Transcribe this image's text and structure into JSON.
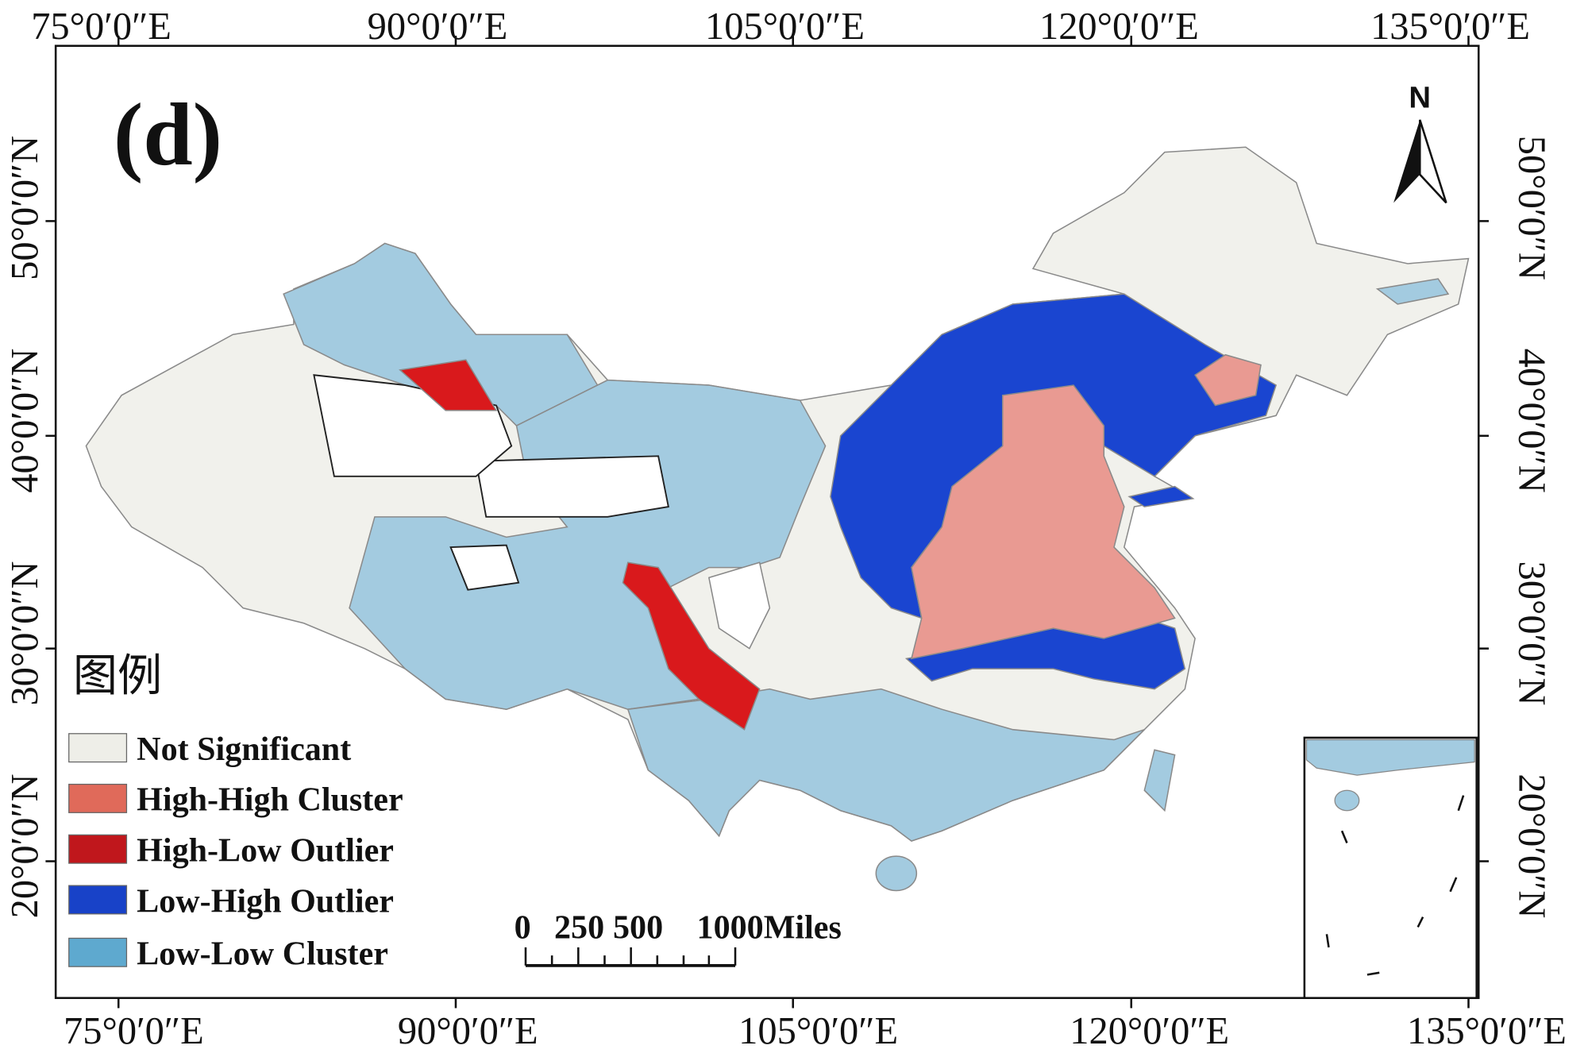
{
  "panel_label": "(d)",
  "north_label": "N",
  "axes": {
    "top": [
      "75°0′0″E",
      "90°0′0″E",
      "105°0′0″E",
      "120°0′0″E",
      "135°0′0″E"
    ],
    "bottom": [
      "75°0′0″E",
      "90°0′0″E",
      "105°0′0″E",
      "120°0′0″E",
      "135°0′0″E"
    ],
    "left": [
      "50°0′0″N",
      "40°0′0″N",
      "30°0′0″N",
      "20°0′0″N"
    ],
    "right": [
      "50°0′0″N",
      "40°0′0″N",
      "30°0′0″N",
      "20°0′0″N"
    ]
  },
  "legend": {
    "title": "图例",
    "items": [
      {
        "label": "Not Significant",
        "color": "#eeeee8"
      },
      {
        "label": "High-High Cluster",
        "color": "#e06a5a"
      },
      {
        "label": "High-Low Outlier",
        "color": "#c0171c"
      },
      {
        "label": "Low-High Outlier",
        "color": "#1842c8"
      },
      {
        "label": "Low-Low Cluster",
        "color": "#5ea9cf"
      }
    ]
  },
  "map_colors": {
    "not_significant": "#f1f1ec",
    "high_high": "#e99a92",
    "high_low": "#d9191c",
    "low_high": "#1a45d0",
    "low_low": "#a3cbe0"
  },
  "scale_bar": {
    "ticks": [
      "0",
      "250",
      "500",
      "1000Miles"
    ]
  }
}
